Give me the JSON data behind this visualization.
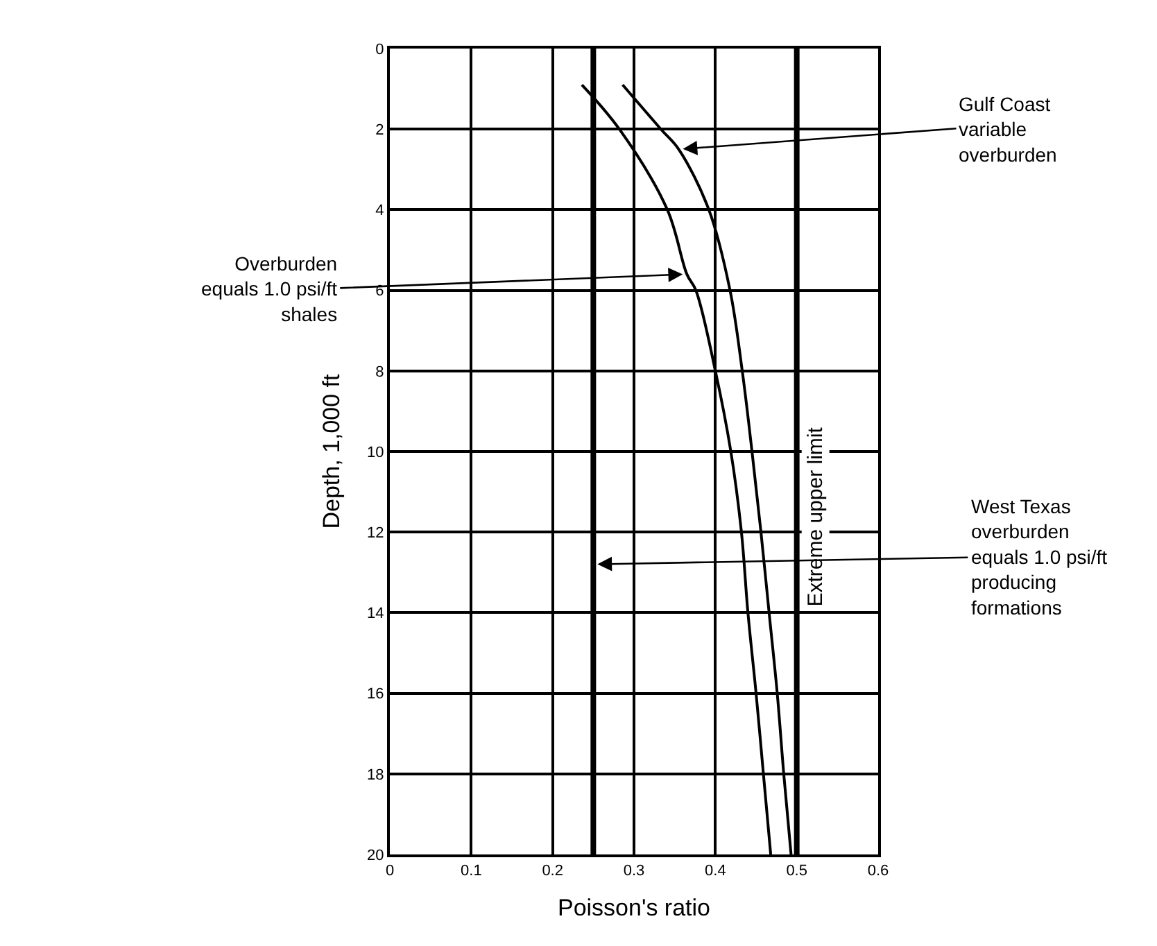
{
  "chart_data": {
    "type": "line",
    "xlabel": "Poisson's ratio",
    "ylabel": "Depth, 1,000 ft",
    "series": [
      {
        "color": "#000000",
        "x": [
          0.236,
          0.282,
          0.341,
          0.365,
          0.376,
          0.4,
          0.419,
          0.432,
          0.44,
          0.45,
          0.459,
          0.468
        ],
        "values": [
          0.9,
          2,
          4,
          5.6,
          6,
          8,
          10,
          12,
          14,
          16,
          18,
          20
        ]
      },
      {
        "color": "#000000",
        "x": [
          0.286,
          0.333,
          0.355,
          0.392,
          0.418,
          0.433,
          0.445,
          0.456,
          0.466,
          0.476,
          0.484,
          0.493
        ],
        "values": [
          0.9,
          2,
          2.5,
          4,
          6,
          8,
          10,
          12,
          14,
          16,
          18,
          20
        ]
      }
    ],
    "ref_lines": [
      {
        "axis": "x",
        "value": 0.25,
        "color": "#000000"
      },
      {
        "axis": "x",
        "value": 0.5,
        "color": "#000000",
        "label": "Extreme upper limit"
      }
    ],
    "annotations": [
      {
        "text": "Gulf Coast\nvariable\noverburden",
        "x": 0.355,
        "y": 2.5
      },
      {
        "text": "Overburden\nequals 1.0 psi/ft\nshales",
        "x": 0.365,
        "y": 5.6
      },
      {
        "text": "West Texas\noverburden\nequals 1.0 psi/ft\nproducing\nformations",
        "x": 0.25,
        "y": 12.8
      }
    ],
    "xlim": [
      0,
      0.6
    ],
    "xticks": [
      0,
      0.1,
      0.2,
      0.3,
      0.4,
      0.5,
      0.6
    ],
    "ylim": [
      20,
      0
    ],
    "yticks": [
      0,
      2,
      4,
      6,
      8,
      10,
      12,
      14,
      16,
      18,
      20
    ],
    "grid": true,
    "marker": "none",
    "line_style": "solid"
  }
}
